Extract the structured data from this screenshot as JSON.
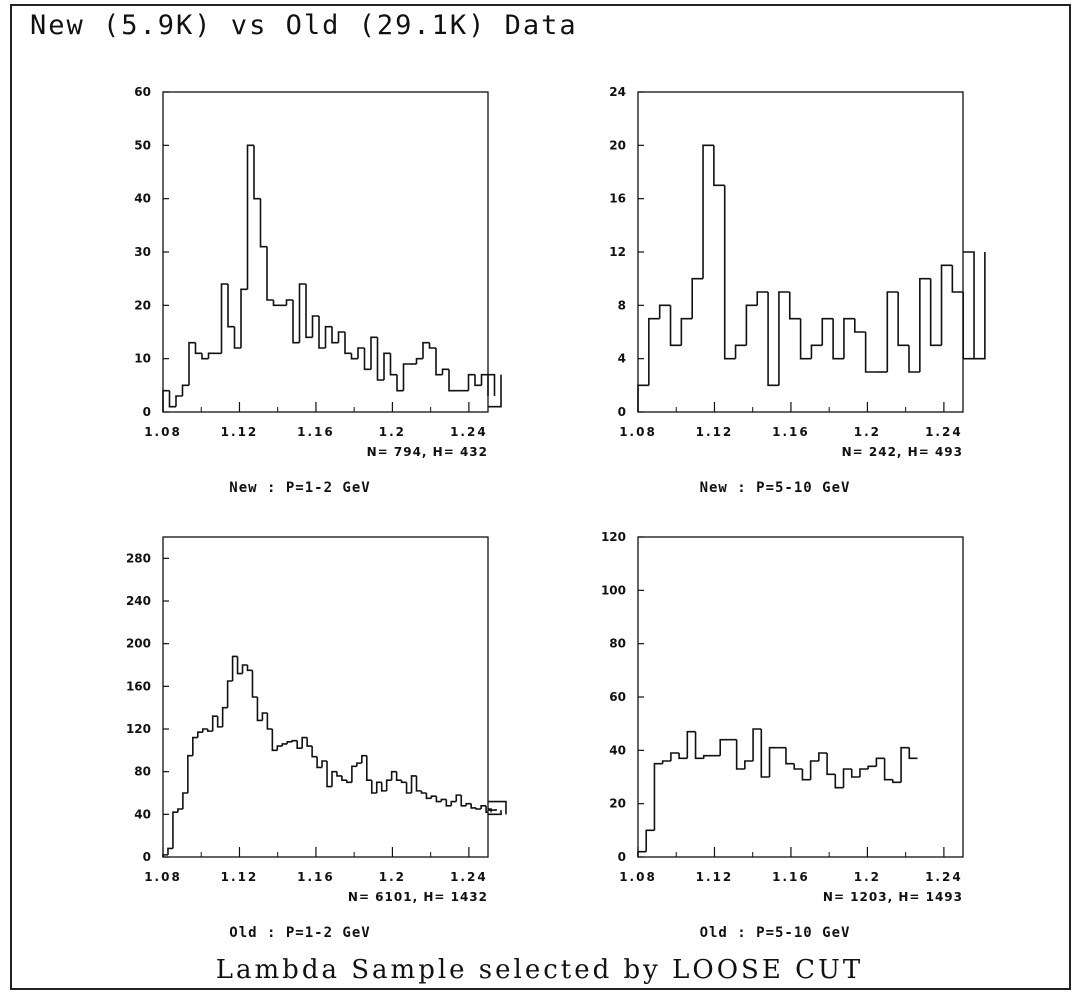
{
  "page": {
    "title": "New (5.9K) vs Old (29.1K) Data",
    "footer": "Lambda Sample selected by LOOSE CUT"
  },
  "chart_data": [
    {
      "type": "histogram",
      "caption": "New : P=1-2 GeV",
      "stats": "N= 794, H= 432",
      "xlim": [
        1.08,
        1.25
      ],
      "ylim": [
        0,
        60
      ],
      "xticks": [
        1.08,
        1.12,
        1.16,
        1.2,
        1.24
      ],
      "xtick_labels": [
        "1.08",
        "1.12",
        "1.16",
        "1.2",
        "1.24"
      ],
      "yticks": [
        0,
        10,
        20,
        30,
        40,
        50,
        60
      ],
      "bin_width": 0.0034,
      "values": [
        4,
        1,
        3,
        5,
        13,
        11,
        10,
        11,
        11,
        24,
        16,
        12,
        23,
        50,
        40,
        31,
        21,
        20,
        20,
        21,
        13,
        24,
        14,
        18,
        12,
        16,
        13,
        15,
        11,
        10,
        12,
        8,
        14,
        6,
        11,
        7,
        4,
        9,
        9,
        10,
        13,
        12,
        7,
        8,
        4,
        4,
        4,
        7,
        5,
        7,
        3,
        7,
        1
      ]
    },
    {
      "type": "histogram",
      "caption": "New : P=5-10 GeV",
      "stats": "N= 242, H= 493",
      "xlim": [
        1.08,
        1.25
      ],
      "ylim": [
        0,
        24
      ],
      "xticks": [
        1.08,
        1.12,
        1.16,
        1.2,
        1.24
      ],
      "xtick_labels": [
        "1.08",
        "1.12",
        "1.16",
        "1.2",
        "1.24"
      ],
      "yticks": [
        0,
        4,
        8,
        12,
        16,
        20,
        24
      ],
      "ytick_labels": [
        "0",
        "4",
        "8",
        "12",
        "16",
        "20",
        "24"
      ],
      "bin_width": 0.00567,
      "values": [
        2,
        7,
        8,
        5,
        7,
        10,
        20,
        17,
        4,
        5,
        8,
        9,
        2,
        9,
        7,
        4,
        5,
        7,
        4,
        7,
        6,
        3,
        3,
        9,
        5,
        3,
        10,
        5,
        11,
        9,
        4,
        12,
        4
      ]
    },
    {
      "type": "histogram",
      "caption": "Old : P=1-2 GeV",
      "stats": "N= 6101, H= 1432",
      "xlim": [
        1.08,
        1.25
      ],
      "ylim": [
        0,
        300
      ],
      "xticks": [
        1.08,
        1.12,
        1.16,
        1.2,
        1.24
      ],
      "xtick_labels": [
        "1.08",
        "1.12",
        "1.16",
        "1.2",
        "1.24"
      ],
      "yticks": [
        0,
        40,
        80,
        120,
        160,
        200,
        240,
        280
      ],
      "ytick_labels": [
        "0",
        "40",
        "80",
        "120",
        "160",
        "200",
        "240",
        "280"
      ],
      "bin_width": 0.0026,
      "values": [
        2,
        8,
        42,
        45,
        60,
        95,
        112,
        117,
        120,
        118,
        132,
        122,
        140,
        165,
        188,
        172,
        180,
        175,
        150,
        128,
        135,
        120,
        100,
        104,
        106,
        108,
        109,
        102,
        112,
        104,
        94,
        84,
        90,
        66,
        80,
        76,
        72,
        70,
        85,
        88,
        95,
        72,
        60,
        70,
        62,
        72,
        80,
        72,
        70,
        60,
        76,
        62,
        60,
        55,
        57,
        52,
        54,
        48,
        52,
        58,
        48,
        50,
        46,
        45,
        48,
        42,
        45,
        44,
        40,
        52
      ]
    },
    {
      "type": "histogram",
      "caption": "Old : P=5-10 GeV",
      "stats": "N= 1203, H= 1493",
      "xlim": [
        1.08,
        1.25
      ],
      "ylim": [
        0,
        120
      ],
      "xticks": [
        1.08,
        1.12,
        1.16,
        1.2,
        1.24
      ],
      "xtick_labels": [
        "1.08",
        "1.12",
        "1.16",
        "1.2",
        "1.24"
      ],
      "yticks": [
        0,
        20,
        40,
        60,
        80,
        100,
        120
      ],
      "ytick_labels": [
        "0",
        "20",
        "40",
        "60",
        "80",
        "100",
        "120"
      ],
      "bin_width": 0.0043,
      "values": [
        2,
        10,
        35,
        36,
        39,
        37,
        47,
        37,
        38,
        38,
        44,
        44,
        33,
        36,
        48,
        30,
        41,
        41,
        35,
        33,
        29,
        36,
        39,
        31,
        26,
        33,
        30,
        33,
        34,
        37,
        29,
        28,
        41,
        37
      ]
    }
  ]
}
